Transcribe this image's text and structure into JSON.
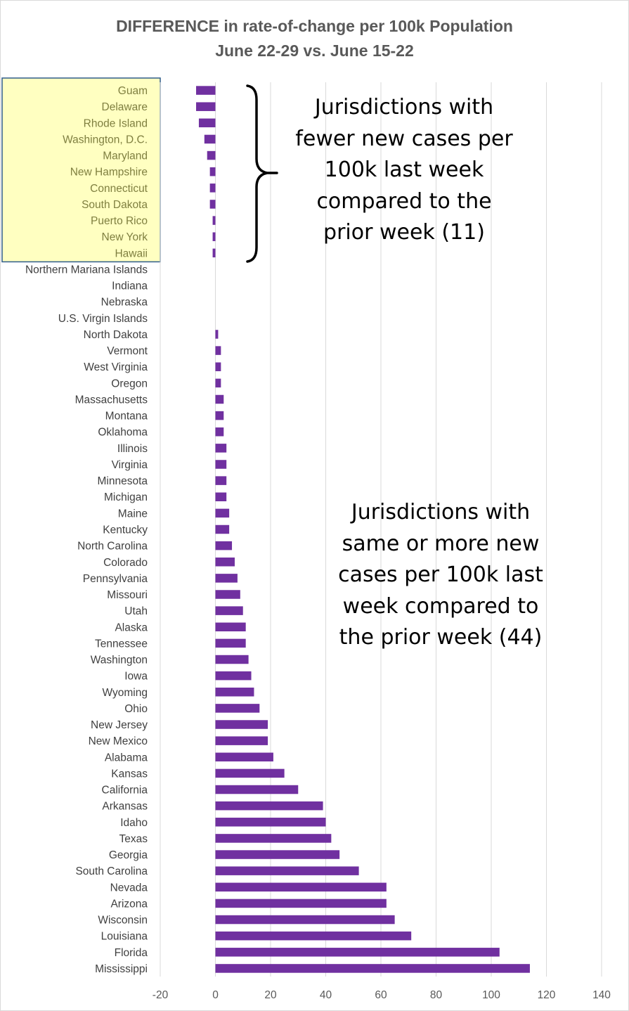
{
  "chart_data": {
    "type": "bar",
    "orientation": "horizontal",
    "title": "DIFFERENCE in rate-of-change per 100k Population",
    "subtitle": "June 22-29 vs. June 15-22",
    "xlim": [
      -20,
      140
    ],
    "xticks": [
      -20,
      0,
      20,
      40,
      60,
      80,
      100,
      120,
      140
    ],
    "grid": "vertical",
    "bar_color": "#7030a0",
    "highlight_color": "#ffffc1",
    "highlight_border_color": "#2e5c8a",
    "highlighted_count": 11,
    "categories": [
      "Guam",
      "Delaware",
      "Rhode Island",
      "Washington, D.C.",
      "Maryland",
      "New Hampshire",
      "Connecticut",
      "South Dakota",
      "Puerto Rico",
      "New York",
      "Hawaii",
      "Northern Mariana Islands",
      "Indiana",
      "Nebraska",
      "U.S. Virgin Islands",
      "North Dakota",
      "Vermont",
      "West Virginia",
      "Oregon",
      "Massachusetts",
      "Montana",
      "Oklahoma",
      "Illinois",
      "Virginia",
      "Minnesota",
      "Michigan",
      "Maine",
      "Kentucky",
      "North Carolina",
      "Colorado",
      "Pennsylvania",
      "Missouri",
      "Utah",
      "Alaska",
      "Tennessee",
      "Washington",
      "Iowa",
      "Wyoming",
      "Ohio",
      "New Jersey",
      "New Mexico",
      "Alabama",
      "Kansas",
      "California",
      "Arkansas",
      "Idaho",
      "Texas",
      "Georgia",
      "South Carolina",
      "Nevada",
      "Arizona",
      "Wisconsin",
      "Louisiana",
      "Florida",
      "Mississippi"
    ],
    "values": [
      -7,
      -7,
      -6,
      -4,
      -3,
      -2,
      -2,
      -2,
      -1,
      -1,
      -1,
      0,
      0,
      0,
      0,
      1,
      2,
      2,
      2,
      3,
      3,
      3,
      4,
      4,
      4,
      4,
      5,
      5,
      6,
      7,
      8,
      9,
      10,
      11,
      11,
      12,
      13,
      14,
      16,
      19,
      19,
      21,
      25,
      30,
      39,
      40,
      42,
      45,
      52,
      62,
      62,
      65,
      71,
      103,
      114
    ]
  },
  "annotations": {
    "top": {
      "lines": [
        "Jurisdictions with",
        "fewer new cases per",
        "100k last week",
        "compared to the",
        "prior week (11)"
      ]
    },
    "bottom": {
      "lines": [
        "Jurisdictions with",
        "same or more new",
        "cases per 100k last",
        "week compared to",
        "the prior week (44)"
      ]
    }
  }
}
